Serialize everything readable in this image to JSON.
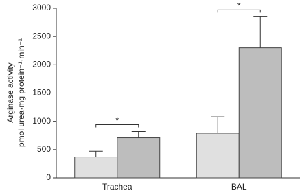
{
  "chart_data": {
    "type": "bar",
    "y_label_lines": [
      "Arginase activity",
      "pmol urea·mg protein⁻¹·min⁻¹"
    ],
    "categories": [
      "Trachea",
      "BAL"
    ],
    "series": [
      {
        "color": "#e0e0e0",
        "values": [
          370,
          790
        ],
        "errors": [
          100,
          290
        ]
      },
      {
        "color": "#bdbdbd",
        "values": [
          710,
          2300
        ],
        "errors": [
          110,
          550
        ]
      }
    ],
    "annotations": [
      "*",
      "*"
    ],
    "ylim": [
      0,
      3000
    ],
    "yticks": [
      0,
      500,
      1000,
      1500,
      2000,
      2500,
      3000
    ],
    "grid": false
  }
}
